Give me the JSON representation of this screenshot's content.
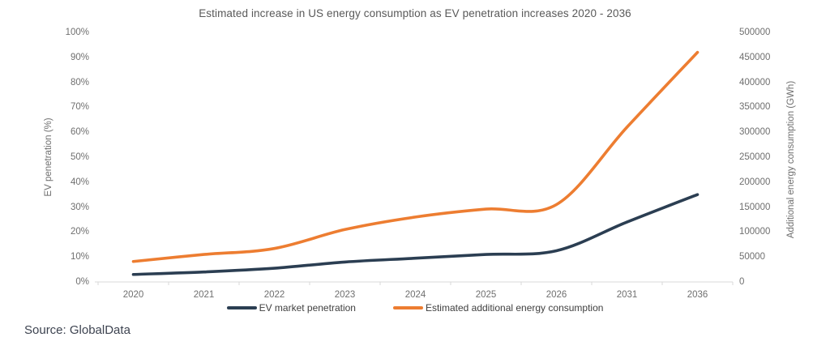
{
  "title": "Estimated increase in US energy consumption as EV penetration increases 2020 - 2036",
  "source": "Source: GlobalData",
  "colors": {
    "ev_line": "#2b3e52",
    "energy_line": "#ED7D31",
    "axis_line": "#d9d9d9",
    "tick_text": "#6f6f6f",
    "title_text": "#595959"
  },
  "chart_data": {
    "type": "line",
    "categories": [
      "2020",
      "2021",
      "2022",
      "2023",
      "2024",
      "2025",
      "2026",
      "2031",
      "2036"
    ],
    "series": [
      {
        "name": "EV market penetration",
        "axis": "left",
        "color": "#2b3e52",
        "values": [
          3,
          4,
          5.5,
          8,
          9.5,
          11,
          12.5,
          24,
          35
        ]
      },
      {
        "name": "Estimated additional energy consumption",
        "axis": "right",
        "color": "#ED7D31",
        "values": [
          41000,
          55000,
          67000,
          105000,
          130000,
          146000,
          155000,
          310000,
          460000
        ]
      }
    ],
    "left_axis": {
      "label": "EV penetration (%)",
      "min": 0,
      "max": 100,
      "step": 10,
      "suffix": "%"
    },
    "right_axis": {
      "label": "Additional energy consumption (GWh)",
      "min": 0,
      "max": 500000,
      "step": 50000,
      "suffix": ""
    },
    "legend_position": "bottom",
    "grid": false,
    "smooth": true
  }
}
